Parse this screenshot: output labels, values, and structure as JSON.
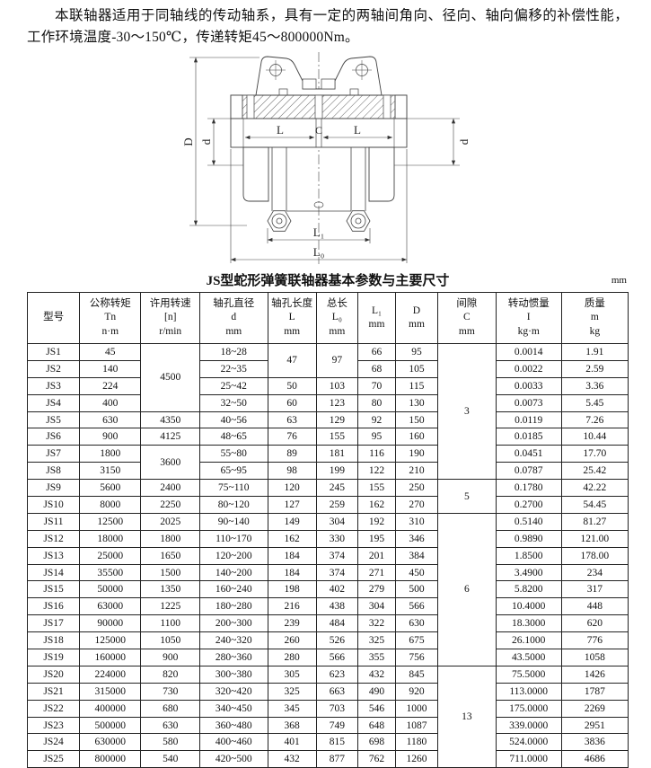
{
  "intro": {
    "text": "本联轴器适用于同轴线的传动轴系，具有一定的两轴间角向、径向、轴向偏移的补偿性能，工作环境温度-30～150℃，传递转矩45～800000Nm。"
  },
  "diagram": {
    "labels": {
      "D": "D",
      "d_left": "d",
      "d_right": "d",
      "L_left": "L",
      "C": "C",
      "L_right": "L",
      "L1": "L₁",
      "L0": "L₀"
    }
  },
  "table": {
    "title": "JS型蛇形弹簧联轴器基本参数与主要尺寸",
    "unit_note": "mm",
    "headers": [
      {
        "lines": [
          "型号"
        ]
      },
      {
        "lines": [
          "公称转矩",
          "Tn",
          "n·m"
        ]
      },
      {
        "lines": [
          "许用转速",
          "[n]",
          "r/min"
        ]
      },
      {
        "lines": [
          "轴孔直径",
          "d",
          "mm"
        ]
      },
      {
        "lines": [
          "轴孔长度",
          "L",
          "mm"
        ]
      },
      {
        "lines": [
          "总长",
          "L₀",
          "mm"
        ]
      },
      {
        "lines": [
          "L₁",
          "mm"
        ]
      },
      {
        "lines": [
          "D",
          "mm"
        ]
      },
      {
        "lines": [
          "间隙",
          "C",
          "mm"
        ]
      },
      {
        "lines": [
          "转动惯量",
          "I",
          "kg·m"
        ]
      },
      {
        "lines": [
          "质量",
          "m",
          "kg"
        ]
      }
    ],
    "rows": [
      [
        {
          "t": "JS1"
        },
        {
          "t": "45"
        },
        {
          "t": "4500",
          "rs": 4
        },
        {
          "t": "18~28"
        },
        {
          "t": "47",
          "rs": 2
        },
        {
          "t": "97",
          "rs": 2
        },
        {
          "t": "66"
        },
        {
          "t": "95"
        },
        {
          "t": "3",
          "rs": 8
        },
        {
          "t": "0.0014"
        },
        {
          "t": "1.91"
        }
      ],
      [
        {
          "t": "JS2"
        },
        {
          "t": "140"
        },
        {
          "t": "22~35"
        },
        {
          "t": "68"
        },
        {
          "t": "105"
        },
        {
          "t": "0.0022"
        },
        {
          "t": "2.59"
        }
      ],
      [
        {
          "t": "JS3"
        },
        {
          "t": "224"
        },
        {
          "t": "25~42"
        },
        {
          "t": "50"
        },
        {
          "t": "103"
        },
        {
          "t": "70"
        },
        {
          "t": "115"
        },
        {
          "t": "0.0033"
        },
        {
          "t": "3.36"
        }
      ],
      [
        {
          "t": "JS4"
        },
        {
          "t": "400"
        },
        {
          "t": "32~50"
        },
        {
          "t": "60"
        },
        {
          "t": "123"
        },
        {
          "t": "80"
        },
        {
          "t": "130"
        },
        {
          "t": "0.0073"
        },
        {
          "t": "5.45"
        }
      ],
      [
        {
          "t": "JS5"
        },
        {
          "t": "630"
        },
        {
          "t": "4350"
        },
        {
          "t": "40~56"
        },
        {
          "t": "63"
        },
        {
          "t": "129"
        },
        {
          "t": "92"
        },
        {
          "t": "150"
        },
        {
          "t": "0.0119"
        },
        {
          "t": "7.26"
        }
      ],
      [
        {
          "t": "JS6"
        },
        {
          "t": "900"
        },
        {
          "t": "4125"
        },
        {
          "t": "48~65"
        },
        {
          "t": "76"
        },
        {
          "t": "155"
        },
        {
          "t": "95"
        },
        {
          "t": "160"
        },
        {
          "t": "0.0185"
        },
        {
          "t": "10.44"
        }
      ],
      [
        {
          "t": "JS7"
        },
        {
          "t": "1800"
        },
        {
          "t": "3600",
          "rs": 2
        },
        {
          "t": "55~80"
        },
        {
          "t": "89"
        },
        {
          "t": "181"
        },
        {
          "t": "116"
        },
        {
          "t": "190"
        },
        {
          "t": "0.0451"
        },
        {
          "t": "17.70"
        }
      ],
      [
        {
          "t": "JS8"
        },
        {
          "t": "3150"
        },
        {
          "t": "65~95"
        },
        {
          "t": "98"
        },
        {
          "t": "199"
        },
        {
          "t": "122"
        },
        {
          "t": "210"
        },
        {
          "t": "0.0787"
        },
        {
          "t": "25.42"
        }
      ],
      [
        {
          "t": "JS9"
        },
        {
          "t": "5600"
        },
        {
          "t": "2400"
        },
        {
          "t": "75~110"
        },
        {
          "t": "120"
        },
        {
          "t": "245"
        },
        {
          "t": "155"
        },
        {
          "t": "250"
        },
        {
          "t": "5",
          "rs": 2
        },
        {
          "t": "0.1780"
        },
        {
          "t": "42.22"
        }
      ],
      [
        {
          "t": "JS10"
        },
        {
          "t": "8000"
        },
        {
          "t": "2250"
        },
        {
          "t": "80~120"
        },
        {
          "t": "127"
        },
        {
          "t": "259"
        },
        {
          "t": "162"
        },
        {
          "t": "270"
        },
        {
          "t": "0.2700"
        },
        {
          "t": "54.45"
        }
      ],
      [
        {
          "t": "JS11"
        },
        {
          "t": "12500"
        },
        {
          "t": "2025"
        },
        {
          "t": "90~140"
        },
        {
          "t": "149"
        },
        {
          "t": "304"
        },
        {
          "t": "192"
        },
        {
          "t": "310"
        },
        {
          "t": "6",
          "rs": 9
        },
        {
          "t": "0.5140"
        },
        {
          "t": "81.27"
        }
      ],
      [
        {
          "t": "JS12"
        },
        {
          "t": "18000"
        },
        {
          "t": "1800"
        },
        {
          "t": "110~170"
        },
        {
          "t": "162"
        },
        {
          "t": "330"
        },
        {
          "t": "195"
        },
        {
          "t": "346"
        },
        {
          "t": "0.9890"
        },
        {
          "t": "121.00"
        }
      ],
      [
        {
          "t": "JS13"
        },
        {
          "t": "25000"
        },
        {
          "t": "1650"
        },
        {
          "t": "120~200"
        },
        {
          "t": "184"
        },
        {
          "t": "374"
        },
        {
          "t": "201"
        },
        {
          "t": "384"
        },
        {
          "t": "1.8500"
        },
        {
          "t": "178.00"
        }
      ],
      [
        {
          "t": "JS14"
        },
        {
          "t": "35500"
        },
        {
          "t": "1500"
        },
        {
          "t": "140~200"
        },
        {
          "t": "184"
        },
        {
          "t": "374"
        },
        {
          "t": "271"
        },
        {
          "t": "450"
        },
        {
          "t": "3.4900"
        },
        {
          "t": "234"
        }
      ],
      [
        {
          "t": "JS15"
        },
        {
          "t": "50000"
        },
        {
          "t": "1350"
        },
        {
          "t": "160~240"
        },
        {
          "t": "198"
        },
        {
          "t": "402"
        },
        {
          "t": "279"
        },
        {
          "t": "500"
        },
        {
          "t": "5.8200"
        },
        {
          "t": "317"
        }
      ],
      [
        {
          "t": "JS16"
        },
        {
          "t": "63000"
        },
        {
          "t": "1225"
        },
        {
          "t": "180~280"
        },
        {
          "t": "216"
        },
        {
          "t": "438"
        },
        {
          "t": "304"
        },
        {
          "t": "566"
        },
        {
          "t": "10.4000"
        },
        {
          "t": "448"
        }
      ],
      [
        {
          "t": "JS17"
        },
        {
          "t": "90000"
        },
        {
          "t": "1100"
        },
        {
          "t": "200~300"
        },
        {
          "t": "239"
        },
        {
          "t": "484"
        },
        {
          "t": "322"
        },
        {
          "t": "630"
        },
        {
          "t": "18.3000"
        },
        {
          "t": "620"
        }
      ],
      [
        {
          "t": "JS18"
        },
        {
          "t": "125000"
        },
        {
          "t": "1050"
        },
        {
          "t": "240~320"
        },
        {
          "t": "260"
        },
        {
          "t": "526"
        },
        {
          "t": "325"
        },
        {
          "t": "675"
        },
        {
          "t": "26.1000"
        },
        {
          "t": "776"
        }
      ],
      [
        {
          "t": "JS19"
        },
        {
          "t": "160000"
        },
        {
          "t": "900"
        },
        {
          "t": "280~360"
        },
        {
          "t": "280"
        },
        {
          "t": "566"
        },
        {
          "t": "355"
        },
        {
          "t": "756"
        },
        {
          "t": "43.5000"
        },
        {
          "t": "1058"
        }
      ],
      [
        {
          "t": "JS20"
        },
        {
          "t": "224000"
        },
        {
          "t": "820"
        },
        {
          "t": "300~380"
        },
        {
          "t": "305"
        },
        {
          "t": "623"
        },
        {
          "t": "432"
        },
        {
          "t": "845"
        },
        {
          "t": "13",
          "rs": 6
        },
        {
          "t": "75.5000"
        },
        {
          "t": "1426"
        }
      ],
      [
        {
          "t": "JS21"
        },
        {
          "t": "315000"
        },
        {
          "t": "730"
        },
        {
          "t": "320~420"
        },
        {
          "t": "325"
        },
        {
          "t": "663"
        },
        {
          "t": "490"
        },
        {
          "t": "920"
        },
        {
          "t": "113.0000"
        },
        {
          "t": "1787"
        }
      ],
      [
        {
          "t": "JS22"
        },
        {
          "t": "400000"
        },
        {
          "t": "680"
        },
        {
          "t": "340~450"
        },
        {
          "t": "345"
        },
        {
          "t": "703"
        },
        {
          "t": "546"
        },
        {
          "t": "1000"
        },
        {
          "t": "175.0000"
        },
        {
          "t": "2269"
        }
      ],
      [
        {
          "t": "JS23"
        },
        {
          "t": "500000"
        },
        {
          "t": "630"
        },
        {
          "t": "360~480"
        },
        {
          "t": "368"
        },
        {
          "t": "749"
        },
        {
          "t": "648"
        },
        {
          "t": "1087"
        },
        {
          "t": "339.0000"
        },
        {
          "t": "2951"
        }
      ],
      [
        {
          "t": "JS24"
        },
        {
          "t": "630000"
        },
        {
          "t": "580"
        },
        {
          "t": "400~460"
        },
        {
          "t": "401"
        },
        {
          "t": "815"
        },
        {
          "t": "698"
        },
        {
          "t": "1180"
        },
        {
          "t": "524.0000"
        },
        {
          "t": "3836"
        }
      ],
      [
        {
          "t": "JS25"
        },
        {
          "t": "800000"
        },
        {
          "t": "540"
        },
        {
          "t": "420~500"
        },
        {
          "t": "432"
        },
        {
          "t": "877"
        },
        {
          "t": "762"
        },
        {
          "t": "1260"
        },
        {
          "t": "711.0000"
        },
        {
          "t": "4686"
        }
      ]
    ]
  }
}
